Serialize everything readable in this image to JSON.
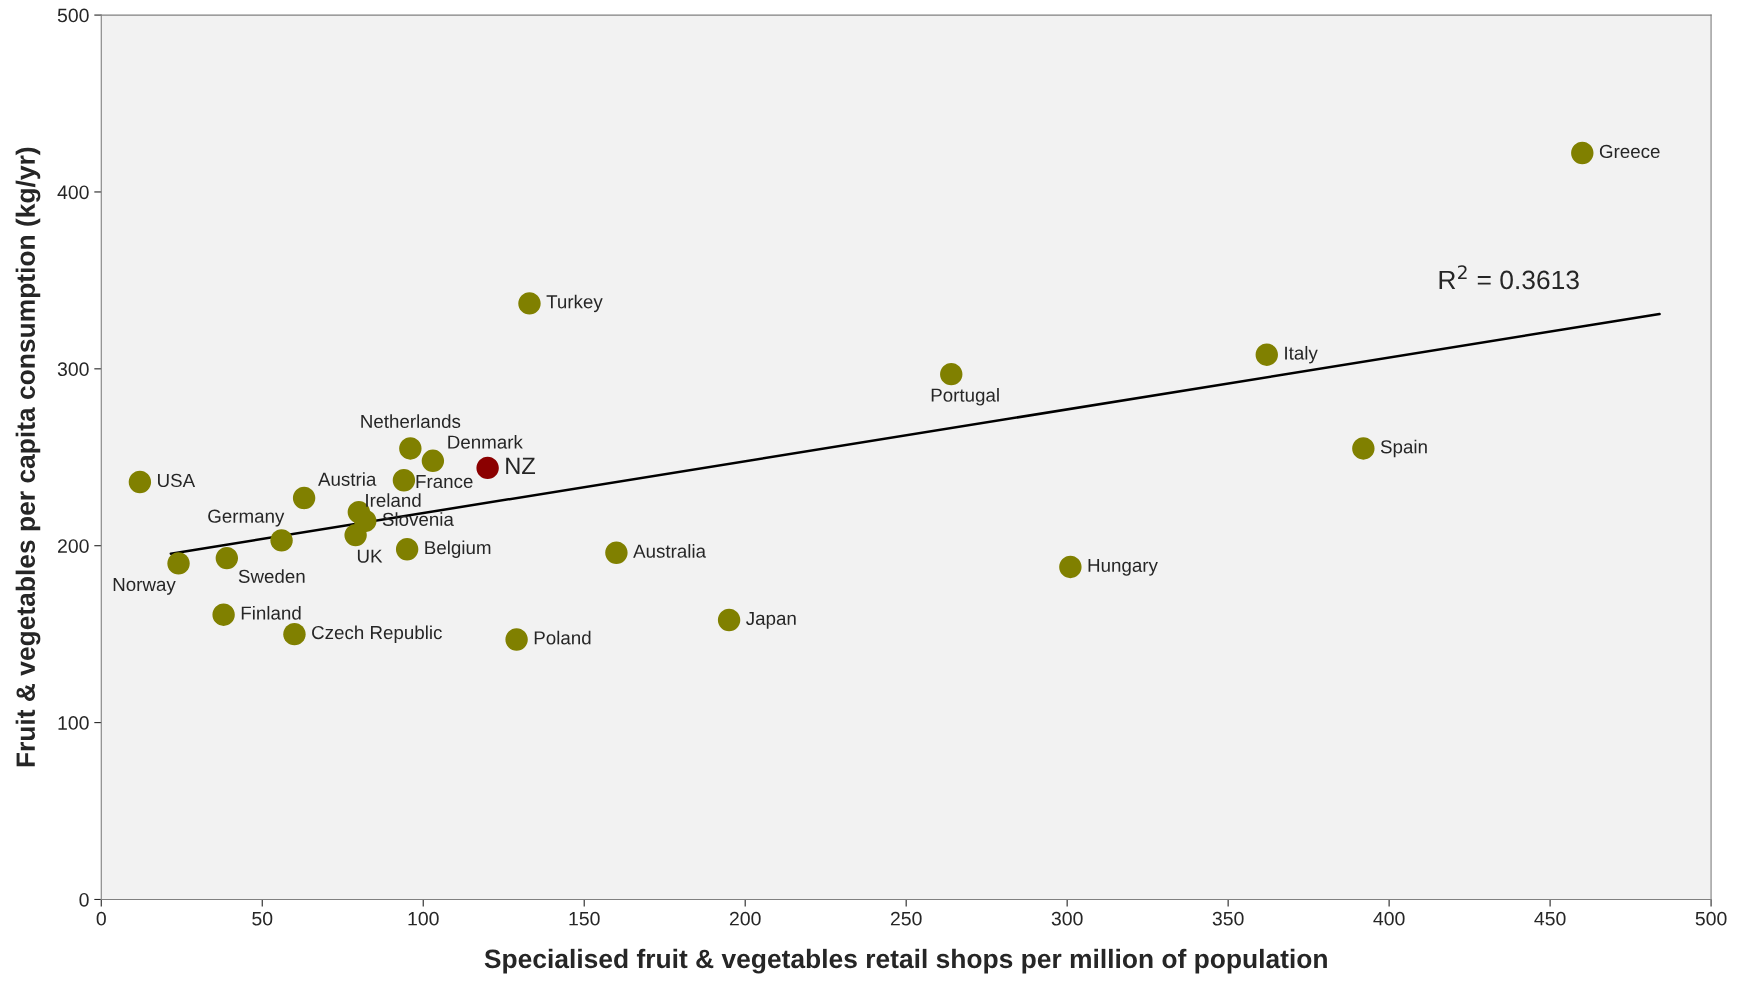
{
  "chart_data": {
    "type": "scatter",
    "xlabel": "Specialised fruit & vegetables retail shops per million of population",
    "ylabel": "Fruit & vegetables per capita consumption (kg/yr)",
    "xlim": [
      0,
      500
    ],
    "ylim": [
      0,
      500
    ],
    "xticks": [
      0,
      50,
      100,
      150,
      200,
      250,
      300,
      350,
      400,
      450,
      500
    ],
    "yticks": [
      0,
      100,
      200,
      300,
      400,
      500
    ],
    "grid": false,
    "legend": false,
    "marker": "circle",
    "series": [
      {
        "name": "USA",
        "color": "#808000",
        "x": [
          12
        ],
        "values": [
          236
        ]
      },
      {
        "name": "Norway",
        "color": "#808000",
        "x": [
          24
        ],
        "values": [
          190
        ]
      },
      {
        "name": "Sweden",
        "color": "#808000",
        "x": [
          39
        ],
        "values": [
          193
        ]
      },
      {
        "name": "Finland",
        "color": "#808000",
        "x": [
          38
        ],
        "values": [
          161
        ]
      },
      {
        "name": "Czech Republic",
        "color": "#808000",
        "x": [
          60
        ],
        "values": [
          150
        ]
      },
      {
        "name": "Germany",
        "color": "#808000",
        "x": [
          56
        ],
        "values": [
          203
        ]
      },
      {
        "name": "Austria",
        "color": "#808000",
        "x": [
          63
        ],
        "values": [
          227
        ]
      },
      {
        "name": "Ireland",
        "color": "#808000",
        "x": [
          80
        ],
        "values": [
          219
        ]
      },
      {
        "name": "Slovenia",
        "color": "#808000",
        "x": [
          82
        ],
        "values": [
          214
        ]
      },
      {
        "name": "UK",
        "color": "#808000",
        "x": [
          79
        ],
        "values": [
          206
        ]
      },
      {
        "name": "Belgium",
        "color": "#808000",
        "x": [
          95
        ],
        "values": [
          198
        ]
      },
      {
        "name": "France",
        "color": "#808000",
        "x": [
          94
        ],
        "values": [
          237
        ]
      },
      {
        "name": "Netherlands",
        "color": "#808000",
        "x": [
          96
        ],
        "values": [
          255
        ]
      },
      {
        "name": "Denmark",
        "color": "#808000",
        "x": [
          103
        ],
        "values": [
          248
        ]
      },
      {
        "name": "NZ",
        "color": "#8b0000",
        "x": [
          120
        ],
        "values": [
          244
        ]
      },
      {
        "name": "Turkey",
        "color": "#808000",
        "x": [
          133
        ],
        "values": [
          337
        ]
      },
      {
        "name": "Poland",
        "color": "#808000",
        "x": [
          129
        ],
        "values": [
          147
        ]
      },
      {
        "name": "Australia",
        "color": "#808000",
        "x": [
          160
        ],
        "values": [
          196
        ]
      },
      {
        "name": "Japan",
        "color": "#808000",
        "x": [
          195
        ],
        "values": [
          158
        ]
      },
      {
        "name": "Portugal",
        "color": "#808000",
        "x": [
          264
        ],
        "values": [
          297
        ]
      },
      {
        "name": "Hungary",
        "color": "#808000",
        "x": [
          301
        ],
        "values": [
          188
        ]
      },
      {
        "name": "Italy",
        "color": "#808000",
        "x": [
          362
        ],
        "values": [
          308
        ]
      },
      {
        "name": "Spain",
        "color": "#808000",
        "x": [
          392
        ],
        "values": [
          255
        ]
      },
      {
        "name": "Greece",
        "color": "#808000",
        "x": [
          460
        ],
        "values": [
          422
        ]
      },
      {
        "type": "line",
        "marker": "none",
        "color": "#000000",
        "x": [
          21.6,
          484
        ],
        "values": [
          195.5,
          331
        ]
      }
    ],
    "annotations": [
      "R$^{2}$ = 0.3613"
    ]
  }
}
